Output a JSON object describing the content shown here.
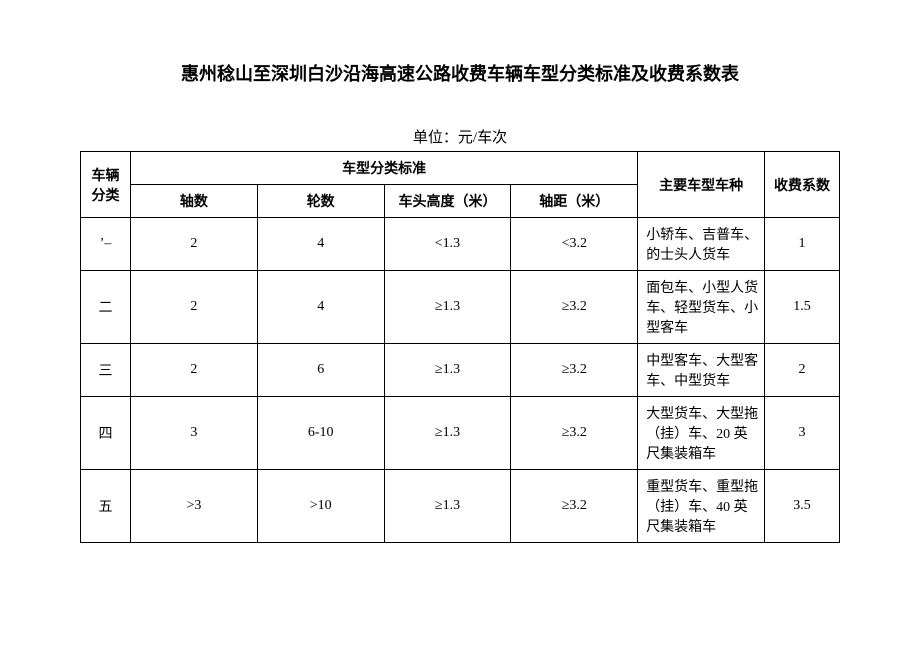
{
  "title": "惠州稔山至深圳白沙沿海高速公路收费车辆车型分类标准及收费系数表",
  "unit_label": "单位：元/车次",
  "headers": {
    "category": "车辆分类",
    "classification_group": "车型分类标准",
    "axle_count": "轴数",
    "wheel_count": "轮数",
    "head_height": "车头高度（米）",
    "wheelbase": "轴距（米）",
    "main_types": "主要车型车种",
    "coefficient": "收费系数"
  },
  "rows": [
    {
      "cat": "’–",
      "axle": "2",
      "wheel": "4",
      "height": "<1.3",
      "dist": "<3.2",
      "type": "小轿车、吉普车、的士头人货车",
      "coef": "1"
    },
    {
      "cat": "二",
      "axle": "2",
      "wheel": "4",
      "height": "≥1.3",
      "dist": "≥3.2",
      "type": "面包车、小型人货车、轻型货车、小型客车",
      "coef": "1.5"
    },
    {
      "cat": "三",
      "axle": "2",
      "wheel": "6",
      "height": "≥1.3",
      "dist": "≥3.2",
      "type": "中型客车、大型客车、中型货车",
      "coef": "2"
    },
    {
      "cat": "四",
      "axle": "3",
      "wheel": "6-10",
      "height": "≥1.3",
      "dist": "≥3.2",
      "type": "大型货车、大型拖（挂）车、20 英尺集装箱车",
      "coef": "3"
    },
    {
      "cat": "五",
      "axle": ">3",
      "wheel": ">10",
      "height": "≥1.3",
      "dist": "≥3.2",
      "type": "重型货车、重型拖（挂）车、40 英尺集装箱车",
      "coef": "3.5"
    }
  ]
}
